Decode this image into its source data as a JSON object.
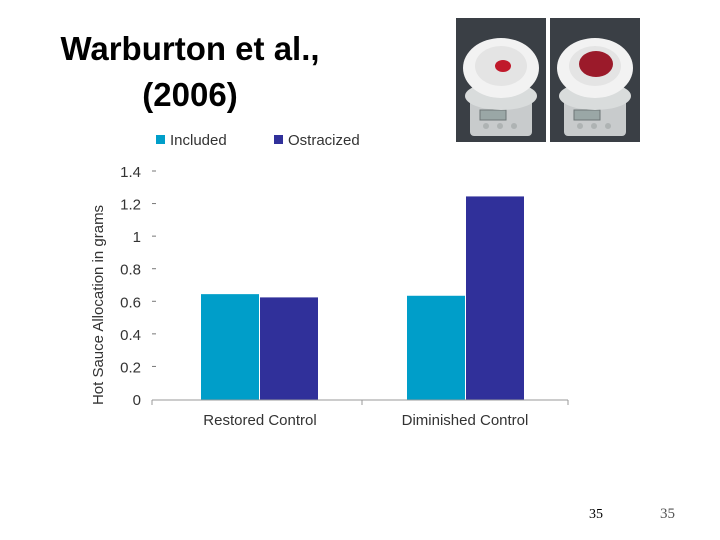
{
  "slide": {
    "title_line1": "Warburton et al.,",
    "title_line2": "(2006)",
    "page_number": "35",
    "page_number_corner": "35"
  },
  "photos": [
    {
      "name": "scale-small-portion",
      "description_icon": "scale-icon"
    },
    {
      "name": "scale-large-portion",
      "description_icon": "scale-icon"
    }
  ],
  "colors": {
    "included": "#009ec9",
    "ostracized": "#30309a"
  },
  "chart_data": {
    "type": "bar",
    "title": "",
    "xlabel": "",
    "ylabel": "Hot Sauce Allocation in grams",
    "categories": [
      "Restored Control",
      "Diminished Control"
    ],
    "series": [
      {
        "name": "Included",
        "values": [
          0.65,
          0.64
        ]
      },
      {
        "name": "Ostracized",
        "values": [
          0.63,
          1.25
        ]
      }
    ],
    "ylim": [
      0,
      1.4
    ],
    "yticks": [
      "0",
      "0.2",
      "0.4",
      "0.6",
      "0.8",
      "1",
      "1.2",
      "1.4"
    ],
    "legend": "top",
    "grid": false
  }
}
